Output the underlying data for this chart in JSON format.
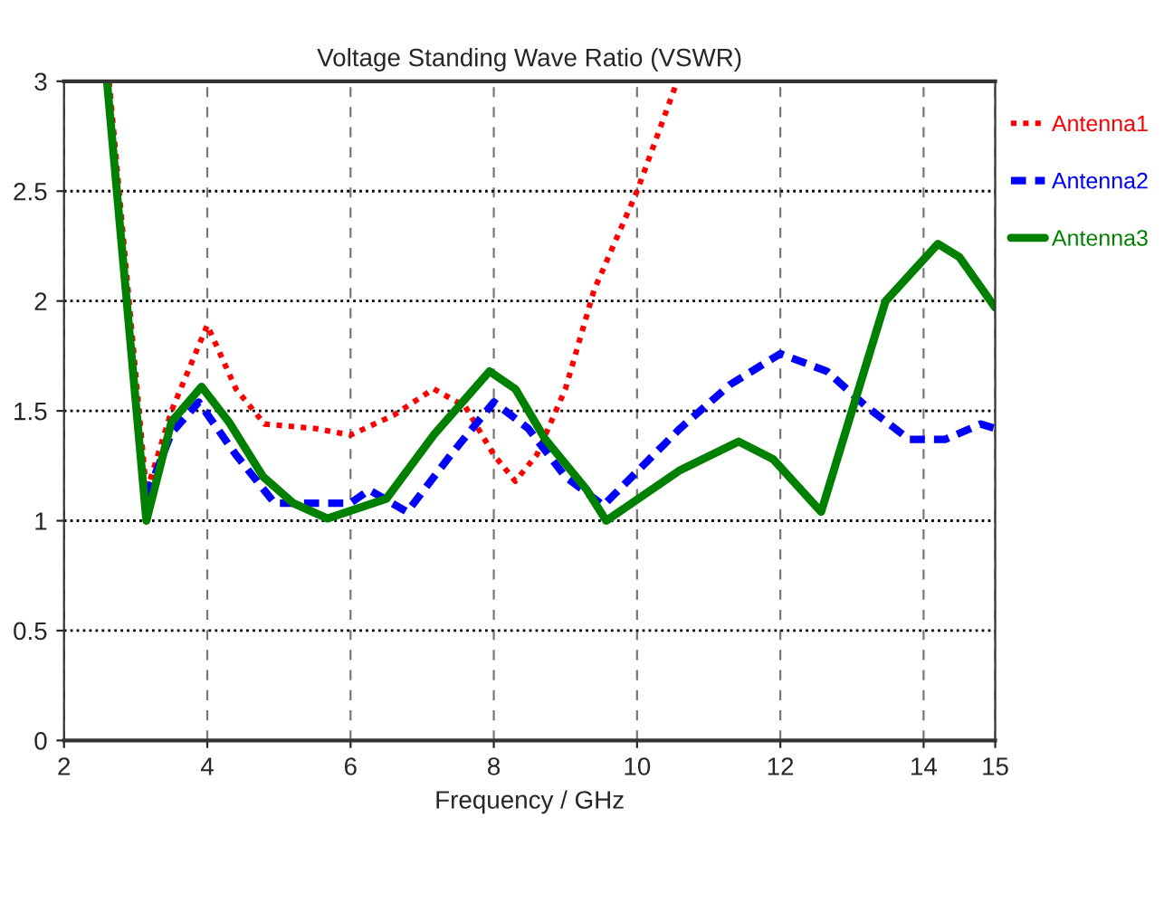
{
  "chart_data": {
    "type": "line",
    "title": "Voltage Standing Wave Ratio (VSWR)",
    "xlabel": "Frequency / GHz",
    "xlim": [
      2,
      15
    ],
    "xticks": [
      2,
      4,
      6,
      8,
      10,
      12,
      14,
      15
    ],
    "ylim": [
      0,
      3
    ],
    "yticks": [
      0,
      0.5,
      1,
      1.5,
      2,
      2.5,
      3
    ],
    "grid": true,
    "legend": "right",
    "series": [
      {
        "name": "Antenna1",
        "color": "#ff0000",
        "line_style": "dotted",
        "x": [
          2.63,
          3.15,
          3.5,
          4.0,
          4.4,
          4.8,
          5.5,
          6.0,
          6.6,
          7.16,
          7.6,
          8.0,
          8.3,
          8.6,
          9.0,
          9.4,
          10,
          10.56
        ],
        "values": [
          3.0,
          1.13,
          1.5,
          1.89,
          1.6,
          1.44,
          1.42,
          1.39,
          1.48,
          1.6,
          1.52,
          1.3,
          1.18,
          1.3,
          1.6,
          2.05,
          2.5,
          3.0
        ]
      },
      {
        "name": "Antenna2",
        "color": "#0000ff",
        "line_style": "dashed",
        "x": [
          3.15,
          3.5,
          3.88,
          4.4,
          4.94,
          6.0,
          6.26,
          6.79,
          7.4,
          8.0,
          8.48,
          9.0,
          9.53,
          10.6,
          11.3,
          12.0,
          12.65,
          13.2,
          13.8,
          14.3,
          14.8,
          15.0
        ],
        "values": [
          1.11,
          1.4,
          1.54,
          1.3,
          1.08,
          1.08,
          1.14,
          1.04,
          1.3,
          1.54,
          1.42,
          1.2,
          1.07,
          1.42,
          1.62,
          1.76,
          1.68,
          1.52,
          1.37,
          1.37,
          1.44,
          1.42
        ]
      },
      {
        "name": "Antenna3",
        "color": "#008000",
        "line_style": "solid",
        "x": [
          2.6,
          3.15,
          3.5,
          3.92,
          4.3,
          4.78,
          5.2,
          5.68,
          6.5,
          7.16,
          7.94,
          8.3,
          8.72,
          9.3,
          9.57,
          10.6,
          11.42,
          11.9,
          12.57,
          13.0,
          13.47,
          14.2,
          14.5,
          15.0
        ],
        "values": [
          3.0,
          1.0,
          1.45,
          1.61,
          1.45,
          1.2,
          1.08,
          1.01,
          1.1,
          1.39,
          1.68,
          1.6,
          1.37,
          1.14,
          1.0,
          1.23,
          1.36,
          1.28,
          1.04,
          1.5,
          2.0,
          2.26,
          2.2,
          1.97
        ]
      }
    ]
  }
}
